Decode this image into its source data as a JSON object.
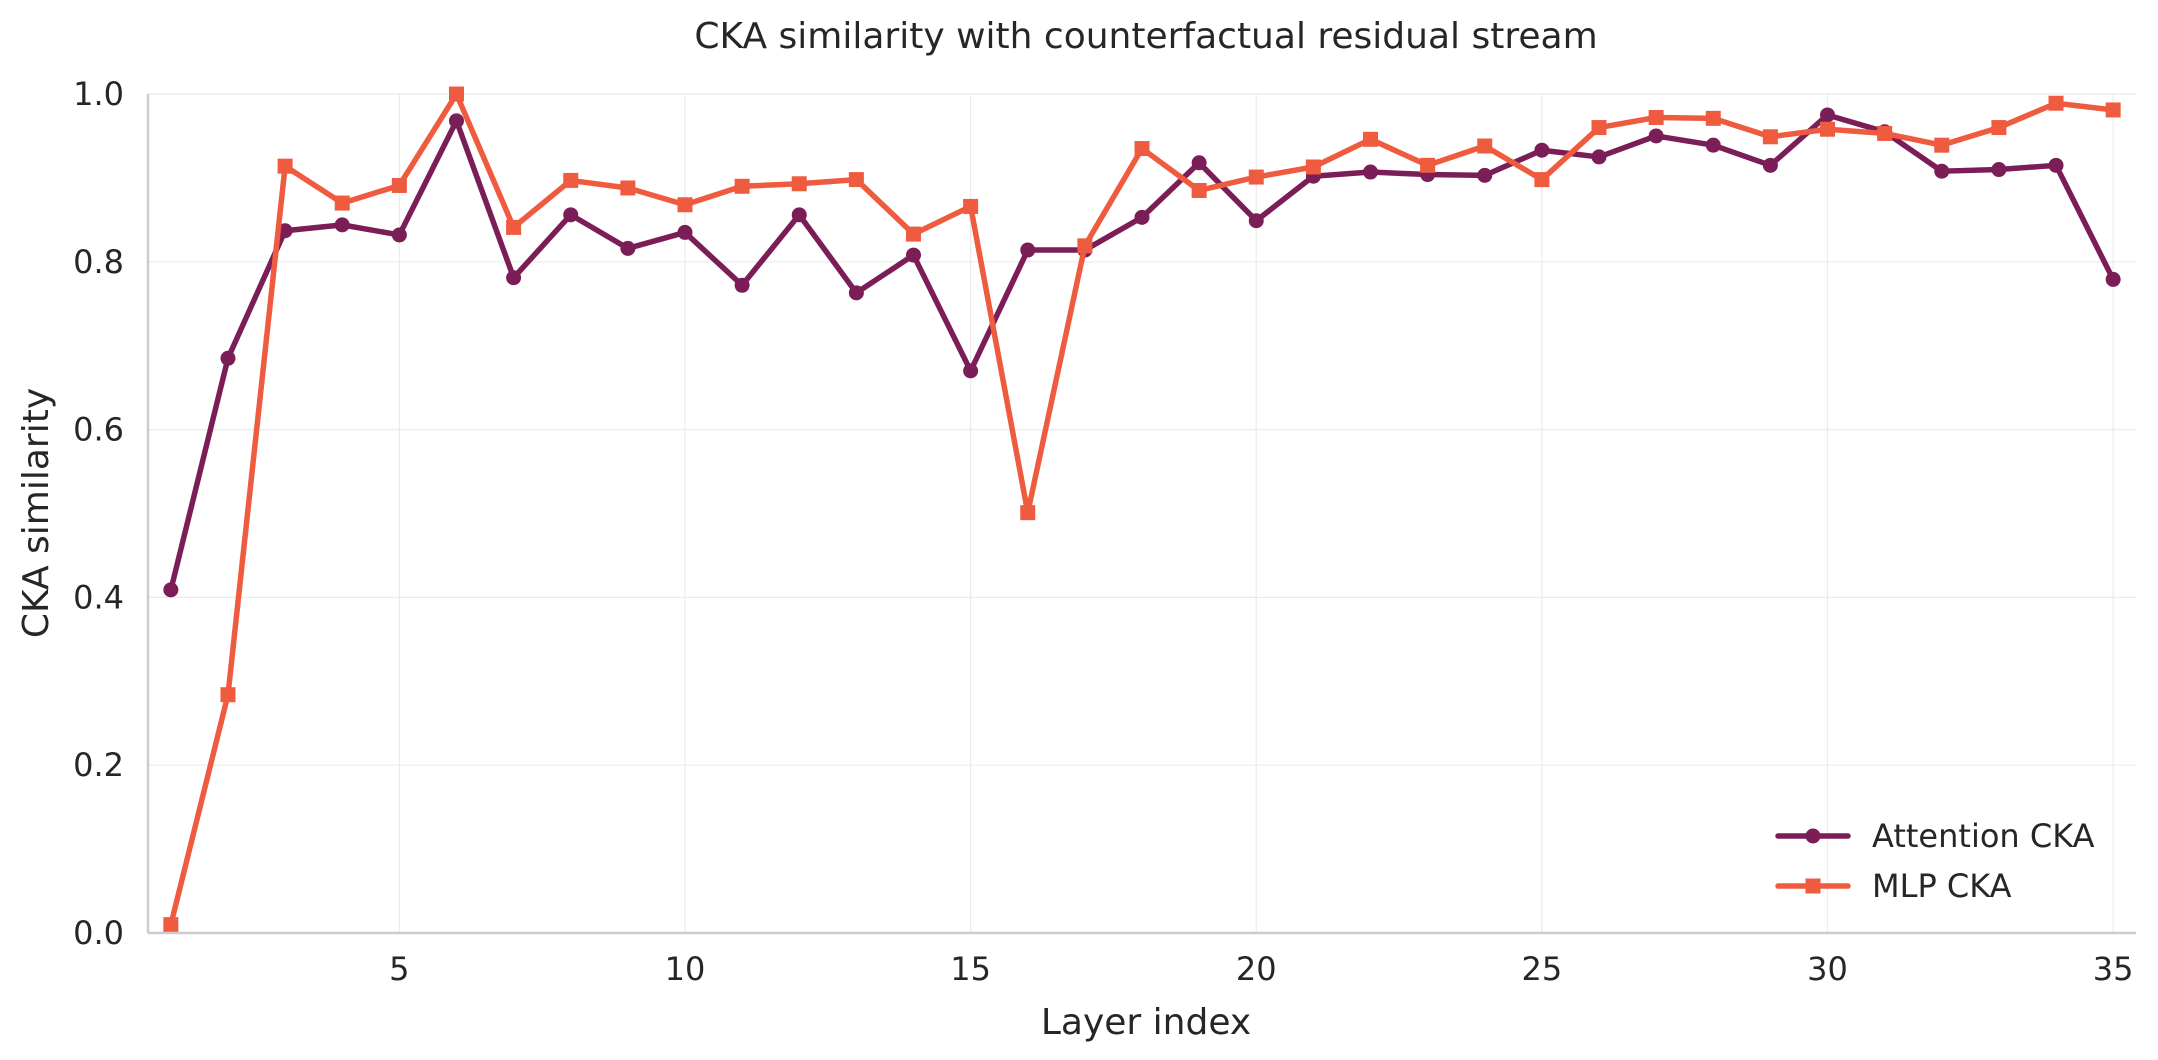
{
  "chart_data": {
    "type": "line",
    "title": "CKA similarity with counterfactual residual stream",
    "xlabel": "Layer index",
    "ylabel": "CKA similarity",
    "xlim": [
      0.6,
      35.4
    ],
    "ylim": [
      0.0,
      1.0
    ],
    "x_ticks": [
      5,
      10,
      15,
      20,
      25,
      30,
      35
    ],
    "y_ticks": [
      "0.0",
      "0.2",
      "0.4",
      "0.6",
      "0.8",
      "1.0"
    ],
    "grid": true,
    "legend_position": "lower-right",
    "x": [
      1,
      2,
      3,
      4,
      5,
      6,
      7,
      8,
      9,
      10,
      11,
      12,
      13,
      14,
      15,
      16,
      17,
      18,
      19,
      20,
      21,
      22,
      23,
      24,
      25,
      26,
      27,
      28,
      29,
      30,
      31,
      32,
      33,
      34,
      35
    ],
    "series": [
      {
        "name": "Attention CKA",
        "marker": "circle",
        "color": "#7b1d57",
        "values": [
          0.409,
          0.685,
          0.837,
          0.844,
          0.832,
          0.968,
          0.781,
          0.856,
          0.816,
          0.835,
          0.772,
          0.856,
          0.763,
          0.808,
          0.67,
          0.814,
          0.814,
          0.853,
          0.918,
          0.849,
          0.902,
          0.907,
          0.904,
          0.903,
          0.933,
          0.925,
          0.95,
          0.939,
          0.915,
          0.975,
          0.955,
          0.908,
          0.91,
          0.915,
          0.779
        ]
      },
      {
        "name": "MLP CKA",
        "marker": "square",
        "color": "#ef5b3f",
        "values": [
          0.01,
          0.284,
          0.914,
          0.87,
          0.891,
          1.0,
          0.841,
          0.897,
          0.888,
          0.868,
          0.89,
          0.893,
          0.898,
          0.833,
          0.866,
          0.501,
          0.819,
          0.935,
          0.885,
          0.901,
          0.913,
          0.946,
          0.915,
          0.938,
          0.898,
          0.96,
          0.972,
          0.971,
          0.949,
          0.958,
          0.953,
          0.939,
          0.96,
          0.989,
          0.981
        ]
      }
    ]
  }
}
